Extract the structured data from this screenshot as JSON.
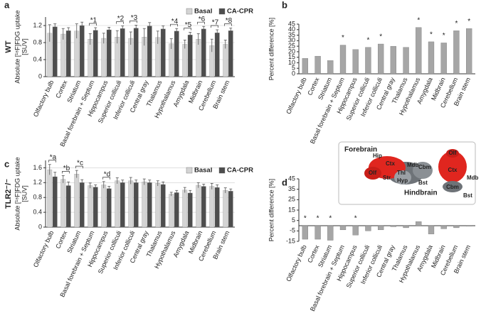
{
  "chart_data": [
    {
      "type": "grouped_bar",
      "panel_label": "a",
      "row_label": "WT",
      "ylabel": [
        "Absolute [¹⁸F]FDG uptake",
        "[SUV]"
      ],
      "categories": [
        "Olfactory bulb",
        "Cortex",
        "Striatum",
        "Basal forebrain + Septum",
        "Hippocampus",
        "Superior colliculi",
        "Inferior colliculi",
        "Central gray",
        "Thalamus",
        "Hypothalamus",
        "Amygdala",
        "Midbrain",
        "Cerebellum",
        "Brain stem"
      ],
      "category_colors": [
        "#e0261f",
        "#e0261f",
        "#e0261f",
        "#222222",
        "#e0261f",
        "#222222",
        "#222222",
        "#222222",
        "#222222",
        "#222222",
        "#222222",
        "#222222",
        "#222222",
        "#222222"
      ],
      "series": [
        {
          "name": "Basal",
          "color": "#d4d4d4",
          "values": [
            1.02,
            1.0,
            1.07,
            0.88,
            0.9,
            0.93,
            0.9,
            0.93,
            0.92,
            0.77,
            0.76,
            0.88,
            0.73,
            0.76
          ],
          "errors": [
            0.2,
            0.13,
            0.17,
            0.13,
            0.12,
            0.15,
            0.15,
            0.2,
            0.15,
            0.12,
            0.1,
            0.13,
            0.15,
            0.1
          ]
        },
        {
          "name": "CA-CPR",
          "color": "#4d4d4d",
          "values": [
            1.17,
            1.08,
            1.2,
            1.09,
            1.1,
            1.13,
            1.14,
            1.19,
            1.12,
            1.07,
            0.98,
            1.12,
            1.03,
            1.08
          ],
          "errors": [
            0.07,
            0.07,
            0.08,
            0.06,
            0.06,
            0.06,
            0.07,
            0.08,
            0.07,
            0.06,
            0.06,
            0.06,
            0.07,
            0.06
          ]
        }
      ],
      "annotations": [
        null,
        null,
        null,
        "*1",
        null,
        "*2",
        "*3",
        null,
        null,
        "*4",
        "*5",
        "*6",
        "*7",
        "*8"
      ],
      "ylim": [
        0,
        1.4
      ],
      "yticks": [
        0,
        0.4,
        0.8,
        1.2
      ],
      "grid": true
    },
    {
      "type": "bar",
      "panel_label": "b",
      "ylabel": [
        "Percent difference [%]"
      ],
      "categories": [
        "Olfactory bulb",
        "Cortex",
        "Striatum",
        "Basal forebrain + Septum",
        "Hippocampus",
        "Superior colliculi",
        "Inferior colliculi",
        "Central gray",
        "Thalamus",
        "Hypothalamus",
        "Amygdala",
        "Midbrain",
        "Cerebellum",
        "Brain stem"
      ],
      "category_colors": [
        "#e0261f",
        "#e0261f",
        "#e0261f",
        "#222222",
        "#e0261f",
        "#222222",
        "#222222",
        "#222222",
        "#222222",
        "#222222",
        "#222222",
        "#222222",
        "#222222",
        "#222222"
      ],
      "values": [
        14,
        16,
        12,
        26,
        22,
        24,
        27,
        25,
        24,
        42,
        29,
        28,
        39,
        41
      ],
      "color": "#a6a6a6",
      "annotations": [
        null,
        null,
        null,
        "*",
        null,
        "*",
        "*",
        null,
        null,
        "*",
        "*",
        "*",
        "*",
        "*"
      ],
      "ylim": [
        0,
        45
      ],
      "yticks": [
        0,
        5,
        10,
        15,
        20,
        25,
        30,
        35,
        40,
        45
      ],
      "grid": false
    },
    {
      "type": "grouped_bar",
      "panel_label": "c",
      "row_label": "TLR2⁻/⁻",
      "ylabel": [
        "Absolute [¹⁸F]FDG uptake",
        "[SUV]"
      ],
      "categories": [
        "Olfactory bulb",
        "Cortex",
        "Striatum",
        "Basal forebrain + Septum",
        "Hippocampus",
        "Superior colliculi",
        "Inferior colliculi",
        "Central gray",
        "Thalamus",
        "Hypothalamus",
        "Amygdala",
        "Midbrain",
        "Cerebellum",
        "Brain stem"
      ],
      "category_colors": [
        "#e0261f",
        "#e0261f",
        "#e0261f",
        "#222222",
        "#e0261f",
        "#222222",
        "#222222",
        "#222222",
        "#222222",
        "#222222",
        "#222222",
        "#222222",
        "#222222",
        "#222222"
      ],
      "series": [
        {
          "name": "Basal",
          "color": "#d4d4d4",
          "values": [
            1.55,
            1.29,
            1.43,
            1.12,
            1.14,
            1.25,
            1.25,
            1.22,
            1.18,
            0.89,
            1.0,
            1.13,
            1.1,
            0.99
          ],
          "errors": [
            0.14,
            0.1,
            0.1,
            0.07,
            0.09,
            0.08,
            0.09,
            0.08,
            0.07,
            0.05,
            0.07,
            0.07,
            0.08,
            0.07
          ]
        },
        {
          "name": "CA-CPR",
          "color": "#4d4d4d",
          "values": [
            1.36,
            1.12,
            1.2,
            1.08,
            1.04,
            1.2,
            1.2,
            1.2,
            1.15,
            0.93,
            0.92,
            1.1,
            1.07,
            0.97
          ],
          "errors": [
            0.12,
            0.1,
            0.08,
            0.06,
            0.06,
            0.07,
            0.07,
            0.07,
            0.07,
            0.06,
            0.07,
            0.06,
            0.07,
            0.06
          ]
        }
      ],
      "annotations": [
        "*a",
        "*b",
        "*c",
        null,
        "*d",
        null,
        null,
        null,
        null,
        null,
        null,
        null,
        null,
        null
      ],
      "ylim": [
        0,
        1.8
      ],
      "yticks": [
        0,
        0.4,
        0.8,
        1.2,
        1.6
      ],
      "grid": true
    },
    {
      "type": "bar",
      "panel_label": "d",
      "ylabel": [
        "Percent difference [%]"
      ],
      "categories": [
        "Olfactory bulb",
        "Cortex",
        "Striatum",
        "Basal forebrain + Septum",
        "Hippocampus",
        "Superior colliculi",
        "Inferior colliculi",
        "Central gray",
        "Thalamus",
        "Hypothalamus",
        "Amygdala",
        "Midbrain",
        "Cerebellum",
        "Brain stem"
      ],
      "category_colors": [
        "#e0261f",
        "#e0261f",
        "#e0261f",
        "#222222",
        "#e0261f",
        "#222222",
        "#222222",
        "#222222",
        "#222222",
        "#222222",
        "#222222",
        "#222222",
        "#222222",
        "#222222"
      ],
      "values": [
        -13,
        -13,
        -14,
        -4,
        -9,
        -5,
        -4,
        -1,
        -2,
        4,
        -8,
        -3,
        -2,
        -0.5
      ],
      "color": "#a6a6a6",
      "annotations": [
        "*",
        "*",
        "*",
        null,
        "*",
        null,
        null,
        null,
        null,
        null,
        null,
        null,
        null,
        null
      ],
      "ylim": [
        -15,
        45
      ],
      "yticks": [
        -15,
        -5,
        5,
        15,
        25,
        35,
        45
      ],
      "grid": false
    }
  ],
  "inset": {
    "labels": [
      "Forebrain",
      "Hip",
      "Ctx",
      "Olf",
      "Str",
      "Thl",
      "Hyp",
      "Mdb",
      "Cbm",
      "Bst",
      "Hindbrain",
      "Olf",
      "Ctx",
      "Mdb",
      "Cbm",
      "Bst"
    ]
  }
}
